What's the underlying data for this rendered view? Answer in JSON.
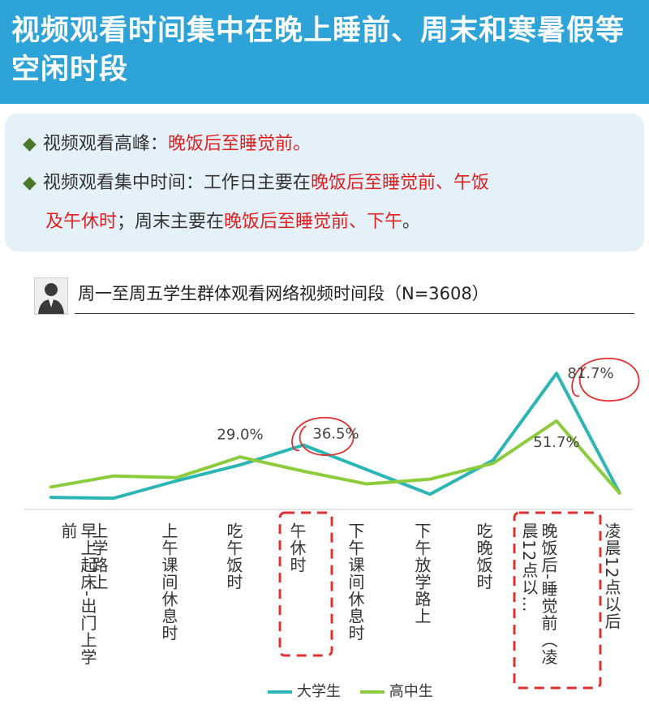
{
  "header": {
    "title": "视频观看时间集中在晚上睡前、周末和寒暑假等空闲时段"
  },
  "summary": {
    "bullet1_prefix": "视频观看高峰：",
    "bullet1_highlight": "晚饭后至睡觉前。",
    "bullet2_prefix": "视频观看集中时间：工作日主要在",
    "bullet2_highlight1": "晚饭后至睡觉前、午饭",
    "bullet2_line2_highlight": "及午休时",
    "bullet2_line2_mid": "；周末主要在",
    "bullet2_line2_highlight2": "晚饭后至睡觉前、下午",
    "bullet2_line2_end": "。"
  },
  "colors": {
    "header_bg": "#2ea3d8",
    "college": "#2bb5b5",
    "highschool": "#8ccc3c",
    "annotation_red": "#e03030"
  },
  "chart_data": {
    "type": "line",
    "title": "周一至周五学生群体观看网络视频时间段（N=3608）",
    "categories": [
      "早上起床-出门上学前",
      "上学路上",
      "上午课间休息时",
      "吃午饭时",
      "午休时",
      "下午课间休息时",
      "下午放学路上",
      "吃晚饭时",
      "晚饭后-睡觉前（凌晨12点以…",
      "凌晨12点以后"
    ],
    "series": [
      {
        "name": "大学生",
        "color": "#2bb5b5",
        "values": [
          3.5,
          3.0,
          14.0,
          24.0,
          36.5,
          21.0,
          5.5,
          27.0,
          81.7,
          6.0
        ]
      },
      {
        "name": "高中生",
        "color": "#8ccc3c",
        "values": [
          10.0,
          17.0,
          16.0,
          29.0,
          20.0,
          12.0,
          15.0,
          25.0,
          51.7,
          6.0
        ]
      }
    ],
    "data_labels": [
      "29.0%",
      "36.5%",
      "51.7%",
      "81.7%"
    ],
    "ylim": [
      0,
      90
    ]
  }
}
